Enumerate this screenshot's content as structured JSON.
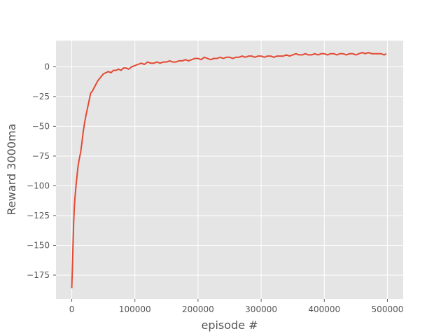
{
  "chart_data": {
    "type": "line",
    "title": "",
    "xlabel": "episode #",
    "ylabel": "Reward 3000ma",
    "xlim": [
      -25000,
      525000
    ],
    "ylim": [
      -195,
      22
    ],
    "grid": true,
    "style": "ggplot",
    "colors": {
      "plot_background": "#e5e5e5",
      "grid": "#ffffff",
      "tick_label": "#555555",
      "axis_label": "#555555",
      "line": "#e24a33"
    },
    "x_ticks": [
      0,
      100000,
      200000,
      300000,
      400000,
      500000
    ],
    "x_tick_labels": [
      "0",
      "100000",
      "200000",
      "300000",
      "400000",
      "500000"
    ],
    "y_ticks": [
      0,
      -25,
      -50,
      -75,
      -100,
      -125,
      -150,
      -175
    ],
    "y_tick_labels": [
      "0",
      "−25",
      "−50",
      "−75",
      "−100",
      "−125",
      "−150",
      "−175"
    ],
    "series": [
      {
        "x": [
          0,
          1000,
          2000,
          3000,
          4000,
          5000,
          6000,
          7000,
          8000,
          9000,
          10000,
          12000,
          14000,
          16000,
          18000,
          20000,
          22000,
          24000,
          26000,
          28000,
          30000,
          32000,
          35000,
          38000,
          41000,
          44000,
          47000,
          50000,
          54000,
          58000,
          62000,
          66000,
          70000,
          74000,
          78000,
          82000,
          86000,
          90000,
          95000,
          100000,
          105000,
          110000,
          115000,
          120000,
          125000,
          130000,
          135000,
          140000,
          145000,
          150000,
          155000,
          160000,
          165000,
          170000,
          175000,
          180000,
          185000,
          190000,
          195000,
          200000,
          205000,
          210000,
          215000,
          220000,
          225000,
          230000,
          235000,
          240000,
          245000,
          250000,
          255000,
          260000,
          265000,
          270000,
          275000,
          280000,
          285000,
          290000,
          295000,
          300000,
          305000,
          310000,
          315000,
          320000,
          325000,
          330000,
          335000,
          340000,
          345000,
          350000,
          355000,
          360000,
          365000,
          370000,
          375000,
          380000,
          385000,
          390000,
          395000,
          400000,
          405000,
          410000,
          415000,
          420000,
          425000,
          430000,
          435000,
          440000,
          445000,
          450000,
          455000,
          460000,
          465000,
          470000,
          475000,
          480000,
          485000,
          490000,
          495000,
          498000
        ],
        "y": [
          -186,
          -170,
          -150,
          -130,
          -118,
          -110,
          -104,
          -98,
          -93,
          -88,
          -83,
          -77,
          -72,
          -64,
          -55,
          -48,
          -42,
          -37,
          -32,
          -27,
          -22,
          -21,
          -18,
          -15,
          -12,
          -10,
          -8,
          -6,
          -5,
          -4,
          -5,
          -3,
          -3,
          -2,
          -3,
          -1,
          -1,
          -2,
          0,
          1,
          2,
          3,
          2,
          4,
          3,
          3,
          4,
          3,
          4,
          4,
          5,
          4,
          4,
          5,
          5,
          6,
          5,
          6,
          7,
          7,
          6,
          8,
          7,
          6,
          7,
          7,
          8,
          7,
          8,
          8,
          7,
          8,
          8,
          9,
          8,
          9,
          9,
          8,
          9,
          9,
          8,
          9,
          9,
          8,
          9,
          9,
          9,
          10,
          9,
          10,
          11,
          10,
          10,
          11,
          10,
          10,
          11,
          10,
          11,
          11,
          10,
          11,
          11,
          10,
          11,
          11,
          10,
          11,
          11,
          10,
          11,
          12,
          11,
          12,
          11,
          11,
          11,
          11,
          10,
          11
        ]
      }
    ]
  }
}
